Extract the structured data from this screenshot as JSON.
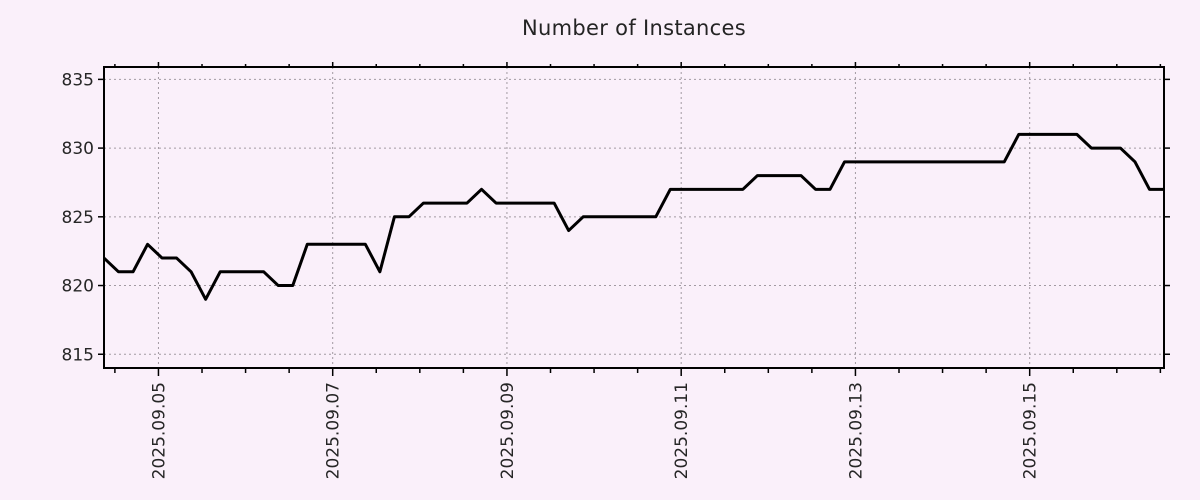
{
  "page": {
    "background": "#faf0fa"
  },
  "chart": {
    "title": "Number of Instances",
    "colors": {
      "background": "#faf0fa",
      "line": "#000000",
      "grid": "#a29aa2",
      "border": "#000000",
      "tick_text": "#262626"
    }
  },
  "chart_data": {
    "type": "line",
    "title": "Number of Instances",
    "series_name": "instances",
    "x_start": "2025-09-04 09:00",
    "x_step_hours": 4,
    "values": [
      822,
      821,
      821,
      823,
      822,
      822,
      821,
      819,
      821,
      821,
      821,
      821,
      820,
      820,
      823,
      823,
      823,
      823,
      823,
      821,
      825,
      825,
      826,
      826,
      826,
      826,
      827,
      826,
      826,
      826,
      826,
      826,
      824,
      825,
      825,
      825,
      825,
      825,
      825,
      827,
      827,
      827,
      827,
      827,
      827,
      828,
      828,
      828,
      828,
      827,
      827,
      829,
      829,
      829,
      829,
      829,
      829,
      829,
      829,
      829,
      829,
      829,
      829,
      831,
      831,
      831,
      831,
      831,
      830,
      830,
      830,
      829,
      827,
      827
    ],
    "x_tick_labels": [
      "2025.09.05",
      "2025.09.07",
      "2025.09.09",
      "2025.09.11",
      "2025.09.13",
      "2025.09.15"
    ],
    "x_tick_positions_steps": [
      3.75,
      15.75,
      27.75,
      39.75,
      51.75,
      63.75
    ],
    "x_minor_tick_offset_steps": 0.75,
    "x_minor_tick_interval_steps": 3,
    "xlim_steps": [
      0,
      73
    ],
    "y_ticks": [
      815,
      820,
      825,
      830,
      835
    ],
    "ylim": [
      814,
      835.9
    ],
    "grid": true,
    "legend": "none"
  }
}
